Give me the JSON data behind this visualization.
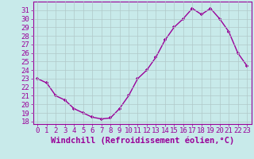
{
  "hours": [
    0,
    1,
    2,
    3,
    4,
    5,
    6,
    7,
    8,
    9,
    10,
    11,
    12,
    13,
    14,
    15,
    16,
    17,
    18,
    19,
    20,
    21,
    22,
    23
  ],
  "values": [
    23.0,
    22.5,
    21.0,
    20.5,
    19.5,
    19.0,
    18.5,
    18.3,
    18.4,
    19.5,
    21.0,
    23.0,
    24.0,
    25.5,
    27.5,
    29.0,
    30.0,
    31.2,
    30.5,
    31.2,
    30.0,
    28.5,
    26.0,
    24.5
  ],
  "line_color": "#990099",
  "marker": "+",
  "bg_color": "#c8eaea",
  "grid_color": "#b0c8c8",
  "xlabel": "Windchill (Refroidissement éolien,°C)",
  "xlabel_color": "#990099",
  "ylabel_ticks": [
    18,
    19,
    20,
    21,
    22,
    23,
    24,
    25,
    26,
    27,
    28,
    29,
    30,
    31
  ],
  "ylim": [
    17.7,
    32.0
  ],
  "xlim": [
    -0.5,
    23.5
  ],
  "tick_color": "#990099",
  "axes_color": "#990099",
  "font_size": 6.5,
  "xlabel_fontsize": 7.5,
  "marker_size": 3,
  "linewidth": 1.0
}
